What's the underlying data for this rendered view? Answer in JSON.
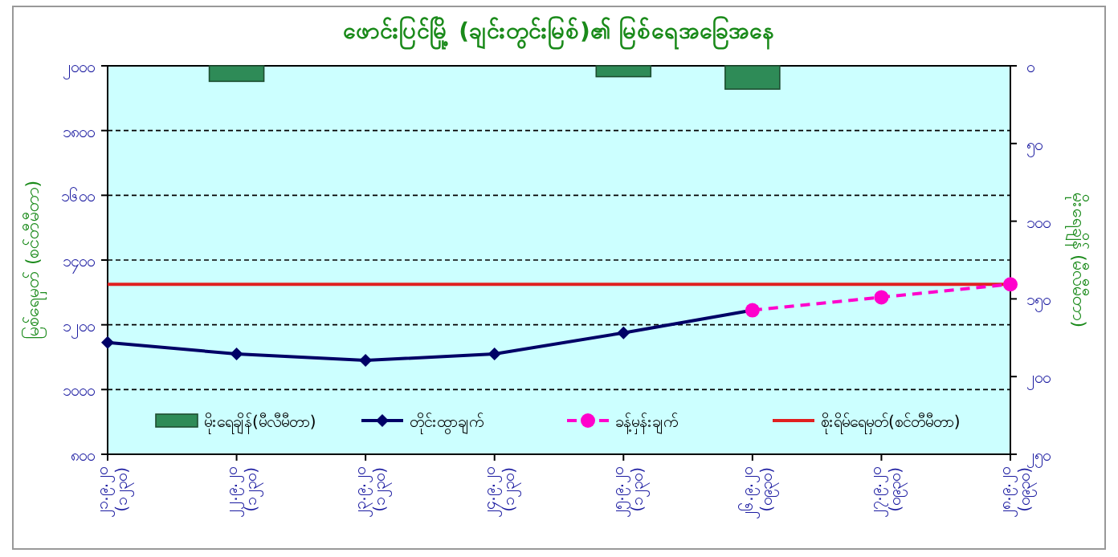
{
  "chart_data": {
    "type": "line",
    "title": "ဖောင်းပြင်မြို့ (ချင်းတွင်းမြစ်)၏ မြစ်ရေအခြေအနေ",
    "ylabel": "မြစ်ရေမှတ် (စင်တီမီတာ)",
    "y2label": "မိုးရေချိန် (မီလီမီတာ)",
    "categories": [
      "၂၁.၉.၂၀ (၁၂၃၀)",
      "၂၂.၉.၂၀ (၁၂၃၀)",
      "၂၃.၉.၂၀ (၁၂၃၀)",
      "၂၄.၉.၂၀ (၁၂၃၀)",
      "၂၅.၉.၂၀ (၁၂၃၀)",
      "၂၆.၉.၂၀ (၀၉၃၀)",
      "၂၇.၉.၂၀ (၀၉၃၀)",
      "၂၈.၉.၂၀ (၀၉၃၀)"
    ],
    "series": [
      {
        "name": "မိုးရေချိန်(မီလီမီတာ)",
        "type": "bar",
        "axis": "y2",
        "color": "#2e8b57",
        "values": [
          null,
          10,
          null,
          null,
          7,
          15,
          null,
          null
        ]
      },
      {
        "name": "တိုင်းထွာချက်",
        "color": "#000066",
        "marker": "diamond",
        "line_style": "solid",
        "values": [
          1145,
          1110,
          1090,
          1110,
          1175,
          1245,
          null,
          null
        ]
      },
      {
        "name": "ခန့်မှန်းချက်",
        "color": "#ff00cc",
        "marker": "circle",
        "line_style": "dashed",
        "values": [
          null,
          null,
          null,
          null,
          null,
          1245,
          1285,
          1325
        ]
      }
    ],
    "ref_lines": [
      {
        "axis": "y",
        "value": 1325,
        "label": "စိုးရိမ်ရေမှတ်(စင်တီမီတာ)",
        "color": "#e02020",
        "line_style": "solid"
      }
    ],
    "ylim": [
      800,
      2000
    ],
    "yticks": [
      {
        "value": 800,
        "label": "၈၀၀"
      },
      {
        "value": 1000,
        "label": "၁၀၀၀"
      },
      {
        "value": 1200,
        "label": "၁၂၀၀"
      },
      {
        "value": 1400,
        "label": "၁၄၀၀"
      },
      {
        "value": 1600,
        "label": "၁၆၀၀"
      },
      {
        "value": 1800,
        "label": "၁၈၀၀"
      },
      {
        "value": 2000,
        "label": "၂၀၀၀"
      }
    ],
    "y2lim": [
      250,
      0
    ],
    "y2ticks": [
      {
        "value": 0,
        "label": "၀"
      },
      {
        "value": 50,
        "label": "၅၀"
      },
      {
        "value": 100,
        "label": "၁၀၀"
      },
      {
        "value": 150,
        "label": "၁၅၀"
      },
      {
        "value": 200,
        "label": "၂၀၀"
      },
      {
        "value": 250,
        "label": "၂၅၀"
      }
    ],
    "grid": "y",
    "legend": "bottom"
  }
}
